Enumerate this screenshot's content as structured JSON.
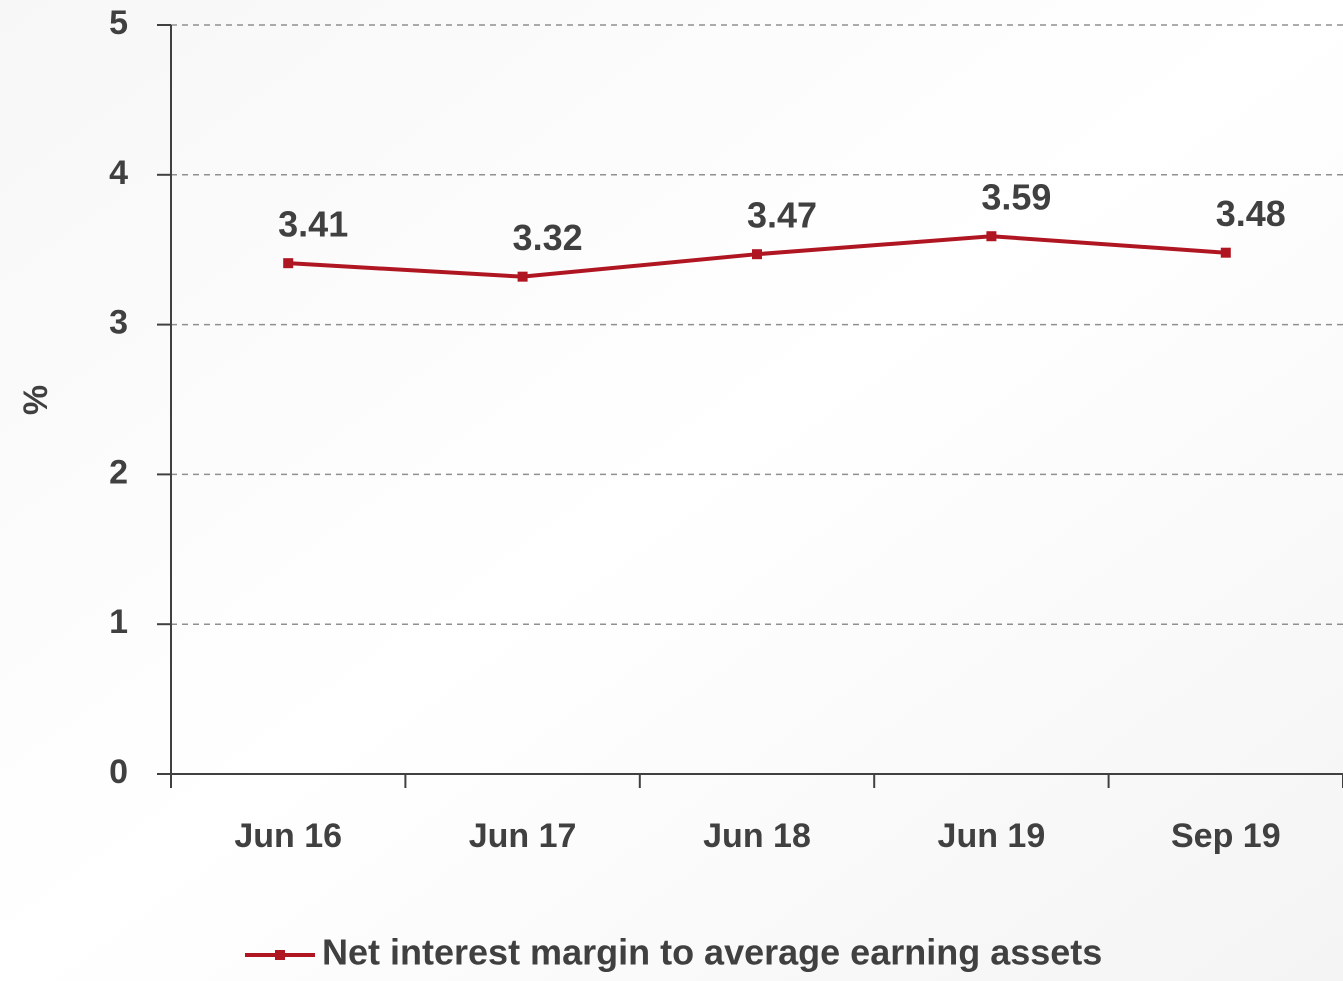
{
  "chart_data": {
    "type": "line",
    "categories": [
      "Jun 16",
      "Jun 17",
      "Jun 18",
      "Jun 19",
      "Sep 19"
    ],
    "series": [
      {
        "name": "Net interest margin to average earning assets",
        "color": "#b01622",
        "values": [
          3.41,
          3.32,
          3.47,
          3.59,
          3.48
        ]
      }
    ],
    "ylabel": "%",
    "ylim": [
      0,
      5
    ],
    "yticks": [
      0,
      1,
      2,
      3,
      4,
      5
    ],
    "grid": true,
    "legend": "bottom"
  }
}
